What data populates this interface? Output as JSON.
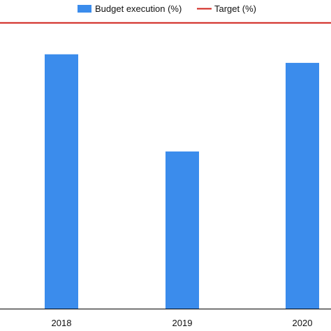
{
  "chart_data": {
    "type": "bar",
    "categories": [
      "2018",
      "2019",
      "2020"
    ],
    "series": [
      {
        "name": "Budget execution (%)",
        "values": [
          89,
          55,
          86
        ],
        "color": "#3b8cec"
      }
    ],
    "reference_lines": [
      {
        "name": "Target (%)",
        "value": 100,
        "color": "#d0201a"
      }
    ],
    "ylim": [
      0,
      108
    ],
    "grid": false,
    "legend": "top-center"
  }
}
